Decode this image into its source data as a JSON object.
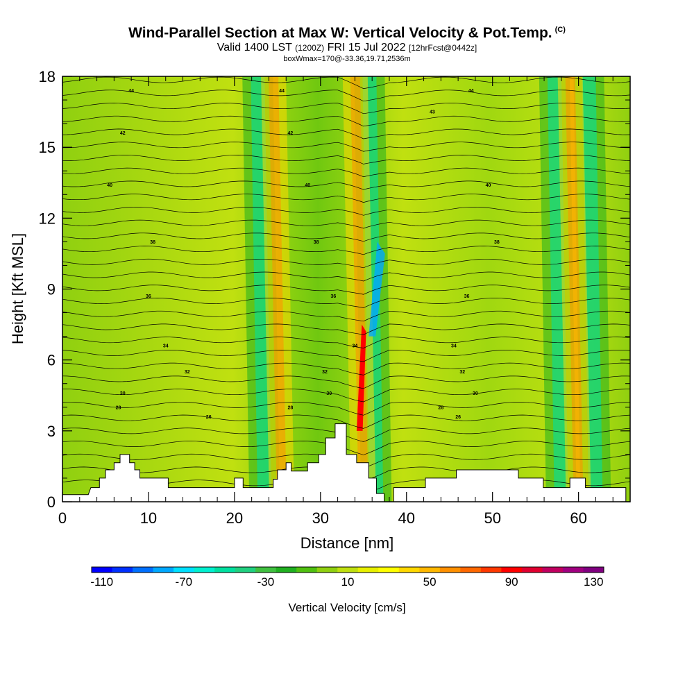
{
  "title": {
    "main": "Wind-Parallel Section at Max W: Vertical Velocity & Pot.Temp.",
    "copyright": "(C)",
    "valid_prefix": "Valid 1400 LST",
    "valid_utc": "(1200Z)",
    "valid_date": "FRI 15 Jul 2022",
    "forecast": "[12hrFcst@0442z]",
    "box_info": "boxWmax=170@-33.36,19.71,2536m"
  },
  "chart_data": {
    "type": "heatmap",
    "xlabel": "Distance [nm]",
    "ylabel": "Height [Kft MSL]",
    "xlim": [
      0,
      66
    ],
    "ylim": [
      0,
      18
    ],
    "x_ticks": [
      "0",
      "10",
      "20",
      "30",
      "40",
      "50",
      "60"
    ],
    "y_ticks": [
      "0",
      "3",
      "6",
      "9",
      "12",
      "15",
      "18"
    ],
    "colorbar": {
      "label": "Vertical Velocity [cm/s]",
      "tick_labels": [
        "-110",
        "-70",
        "-30",
        "10",
        "50",
        "90",
        "130"
      ],
      "min": -115,
      "max": 135,
      "colors": [
        "#0000ff",
        "#0030ff",
        "#0070ff",
        "#00a8ff",
        "#00e0ff",
        "#00f0d0",
        "#00e0a0",
        "#20d080",
        "#40c040",
        "#20b020",
        "#50c010",
        "#90d010",
        "#c0e010",
        "#e8f000",
        "#ffff00",
        "#ffd800",
        "#ffb800",
        "#ff9000",
        "#ff6800",
        "#ff3800",
        "#ff0000",
        "#e00030",
        "#c00060",
        "#a00080",
        "#800080"
      ]
    },
    "updraft_bands_x": [
      25.5,
      35,
      60
    ],
    "downdraft_bands_x": [
      23.5,
      36.5,
      58,
      62
    ],
    "terrain_kft": [
      [
        0,
        0.3
      ],
      [
        3,
        0.3
      ],
      [
        3.3,
        0.6
      ],
      [
        4.3,
        0.6
      ],
      [
        4.3,
        1.0
      ],
      [
        5,
        1.0
      ],
      [
        5,
        1.35
      ],
      [
        6,
        1.35
      ],
      [
        6,
        1.65
      ],
      [
        6.7,
        1.65
      ],
      [
        6.7,
        2.0
      ],
      [
        7.8,
        2.0
      ],
      [
        7.8,
        1.65
      ],
      [
        8.4,
        1.65
      ],
      [
        8.4,
        1.35
      ],
      [
        9,
        1.35
      ],
      [
        9,
        1.0
      ],
      [
        10,
        1.0
      ],
      [
        10,
        1.0
      ],
      [
        12.3,
        1.0
      ],
      [
        12.3,
        0.6
      ],
      [
        20,
        0.6
      ],
      [
        20,
        1.0
      ],
      [
        21,
        1.0
      ],
      [
        21,
        0.6
      ],
      [
        24.5,
        0.6
      ],
      [
        24.5,
        0.95
      ],
      [
        25,
        0.95
      ],
      [
        25,
        1.35
      ],
      [
        26,
        1.35
      ],
      [
        26,
        1.65
      ],
      [
        26.6,
        1.65
      ],
      [
        26.6,
        1.3
      ],
      [
        28.5,
        1.3
      ],
      [
        28.5,
        1.65
      ],
      [
        29.8,
        1.65
      ],
      [
        29.8,
        2.0
      ],
      [
        30.6,
        2.0
      ],
      [
        30.6,
        2.7
      ],
      [
        31.7,
        2.7
      ],
      [
        31.7,
        3.3
      ],
      [
        33,
        3.3
      ],
      [
        33,
        2.0
      ],
      [
        34.2,
        2.0
      ],
      [
        34.2,
        1.65
      ],
      [
        35.6,
        1.65
      ],
      [
        35.6,
        1.0
      ],
      [
        36.5,
        1.0
      ],
      [
        36.5,
        0.35
      ],
      [
        37.4,
        0.35
      ],
      [
        37.4,
        0.0
      ],
      [
        38.5,
        0.0
      ],
      [
        38.5,
        0.6
      ],
      [
        42.2,
        0.6
      ],
      [
        42.2,
        1.0
      ],
      [
        45.8,
        1.0
      ],
      [
        45.8,
        1.35
      ],
      [
        53,
        1.35
      ],
      [
        53,
        1.0
      ],
      [
        55.9,
        1.0
      ],
      [
        55.9,
        0.6
      ],
      [
        59,
        0.6
      ],
      [
        59,
        1.0
      ],
      [
        60.8,
        1.0
      ],
      [
        60.8,
        0.6
      ],
      [
        65.5,
        0.6
      ],
      [
        65.5,
        0.0
      ],
      [
        66,
        0.0
      ]
    ],
    "isentropes": [
      {
        "theta": "44",
        "y_kft": 17.4,
        "label_positions_nm": [
          8,
          25.5,
          47.5
        ]
      },
      {
        "theta": "43",
        "y_kft": 16.5,
        "label_positions_nm": [
          43
        ]
      },
      {
        "theta": "42",
        "y_kft": 15.6,
        "label_positions_nm": [
          7,
          26.5
        ]
      },
      {
        "theta": "40",
        "y_kft": 13.4,
        "label_positions_nm": [
          5.5,
          28.5,
          49.5
        ]
      },
      {
        "theta": "38",
        "y_kft": 11.0,
        "label_positions_nm": [
          10.5,
          29.5,
          50.5
        ]
      },
      {
        "theta": "36",
        "y_kft": 8.7,
        "label_positions_nm": [
          10,
          31.5,
          47
        ]
      },
      {
        "theta": "34",
        "y_kft": 6.6,
        "label_positions_nm": [
          12,
          34,
          45.5
        ]
      },
      {
        "theta": "32",
        "y_kft": 5.5,
        "label_positions_nm": [
          14.5,
          30.5,
          46.5
        ]
      },
      {
        "theta": "30",
        "y_kft": 4.6,
        "label_positions_nm": [
          7,
          31,
          48
        ]
      },
      {
        "theta": "28",
        "y_kft": 4.0,
        "label_positions_nm": [
          6.5,
          26.5,
          44
        ]
      },
      {
        "theta": "26",
        "y_kft": 3.6,
        "label_positions_nm": [
          17,
          46
        ]
      }
    ]
  }
}
